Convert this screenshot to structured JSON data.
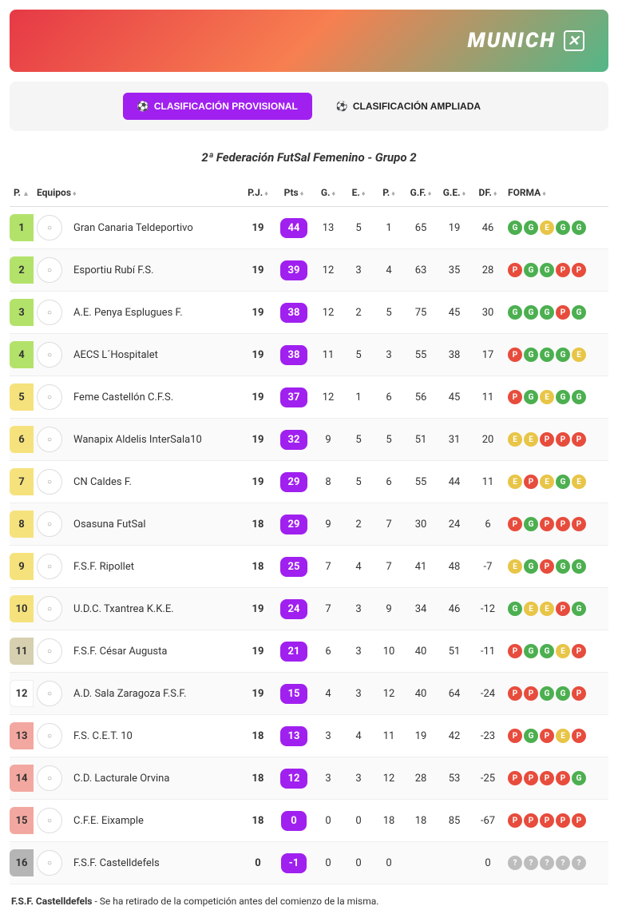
{
  "banner": {
    "brand": "MUNICH"
  },
  "tabs": {
    "active_label": "CLASIFICACIÓN PROVISIONAL",
    "inactive_label": "CLASIFICACIÓN AMPLIADA"
  },
  "title": "2ª Federación FutSal Femenino - Grupo 2",
  "columns": {
    "pos": "P.",
    "team": "Equipos",
    "pj": "P.J.",
    "pts": "Pts",
    "g": "G.",
    "e": "E.",
    "p": "P.",
    "gf": "G.F.",
    "ge": "G.E.",
    "df": "DF.",
    "forma": "FORMA"
  },
  "colors": {
    "rank_green": "#b3e26b",
    "rank_yellow": "#f6e27d",
    "rank_beige": "#d6d0b0",
    "rank_none": "#ffffff",
    "rank_red": "#f2a8a0",
    "rank_gray": "#b5b5b5",
    "form_G": "#4caf50",
    "form_E": "#e8c547",
    "form_P": "#e74c3c",
    "form_Q": "#bdbdbd",
    "pts_bg": "#a020f0"
  },
  "rows": [
    {
      "pos": 1,
      "rank_color": "rank_green",
      "team": "Gran Canaria Teldeportivo",
      "pj": 19,
      "pts": 44,
      "g": 13,
      "e": 5,
      "p": 1,
      "gf": 65,
      "ge": 19,
      "df": 46,
      "forma": [
        "G",
        "G",
        "E",
        "G",
        "G"
      ]
    },
    {
      "pos": 2,
      "rank_color": "rank_green",
      "team": "Esportiu Rubí F.S.",
      "pj": 19,
      "pts": 39,
      "g": 12,
      "e": 3,
      "p": 4,
      "gf": 63,
      "ge": 35,
      "df": 28,
      "forma": [
        "P",
        "G",
        "G",
        "P",
        "P"
      ]
    },
    {
      "pos": 3,
      "rank_color": "rank_green",
      "team": "A.E. Penya Esplugues F.",
      "pj": 19,
      "pts": 38,
      "g": 12,
      "e": 2,
      "p": 5,
      "gf": 75,
      "ge": 45,
      "df": 30,
      "forma": [
        "G",
        "G",
        "G",
        "P",
        "G"
      ]
    },
    {
      "pos": 4,
      "rank_color": "rank_green",
      "team": "AECS L´Hospitalet",
      "pj": 19,
      "pts": 38,
      "g": 11,
      "e": 5,
      "p": 3,
      "gf": 55,
      "ge": 38,
      "df": 17,
      "forma": [
        "P",
        "G",
        "G",
        "G",
        "E"
      ]
    },
    {
      "pos": 5,
      "rank_color": "rank_yellow",
      "team": "Feme Castellón C.F.S.",
      "pj": 19,
      "pts": 37,
      "g": 12,
      "e": 1,
      "p": 6,
      "gf": 56,
      "ge": 45,
      "df": 11,
      "forma": [
        "P",
        "G",
        "E",
        "G",
        "G"
      ]
    },
    {
      "pos": 6,
      "rank_color": "rank_yellow",
      "team": "Wanapix Aldelis InterSala10",
      "pj": 19,
      "pts": 32,
      "g": 9,
      "e": 5,
      "p": 5,
      "gf": 51,
      "ge": 31,
      "df": 20,
      "forma": [
        "E",
        "E",
        "P",
        "P",
        "P"
      ]
    },
    {
      "pos": 7,
      "rank_color": "rank_yellow",
      "team": "CN Caldes F.",
      "pj": 19,
      "pts": 29,
      "g": 8,
      "e": 5,
      "p": 6,
      "gf": 55,
      "ge": 44,
      "df": 11,
      "forma": [
        "E",
        "P",
        "E",
        "G",
        "E"
      ]
    },
    {
      "pos": 8,
      "rank_color": "rank_yellow",
      "team": "Osasuna FutSal",
      "pj": 18,
      "pts": 29,
      "g": 9,
      "e": 2,
      "p": 7,
      "gf": 30,
      "ge": 24,
      "df": 6,
      "forma": [
        "P",
        "G",
        "P",
        "P",
        "P"
      ]
    },
    {
      "pos": 9,
      "rank_color": "rank_yellow",
      "team": "F.S.F. Ripollet",
      "pj": 18,
      "pts": 25,
      "g": 7,
      "e": 4,
      "p": 7,
      "gf": 41,
      "ge": 48,
      "df": -7,
      "forma": [
        "E",
        "G",
        "P",
        "G",
        "G"
      ]
    },
    {
      "pos": 10,
      "rank_color": "rank_yellow",
      "team": "U.D.C. Txantrea K.K.E.",
      "pj": 19,
      "pts": 24,
      "g": 7,
      "e": 3,
      "p": 9,
      "gf": 34,
      "ge": 46,
      "df": -12,
      "forma": [
        "G",
        "E",
        "E",
        "P",
        "G"
      ]
    },
    {
      "pos": 11,
      "rank_color": "rank_beige",
      "team": "F.S.F. César Augusta",
      "pj": 19,
      "pts": 21,
      "g": 6,
      "e": 3,
      "p": 10,
      "gf": 40,
      "ge": 51,
      "df": -11,
      "forma": [
        "P",
        "G",
        "G",
        "E",
        "P"
      ]
    },
    {
      "pos": 12,
      "rank_color": "rank_none",
      "team": "A.D. Sala Zaragoza F.S.F.",
      "pj": 19,
      "pts": 15,
      "g": 4,
      "e": 3,
      "p": 12,
      "gf": 40,
      "ge": 64,
      "df": -24,
      "forma": [
        "P",
        "P",
        "G",
        "G",
        "P"
      ]
    },
    {
      "pos": 13,
      "rank_color": "rank_red",
      "team": "F.S. C.E.T. 10",
      "pj": 18,
      "pts": 13,
      "g": 3,
      "e": 4,
      "p": 11,
      "gf": 19,
      "ge": 42,
      "df": -23,
      "forma": [
        "P",
        "G",
        "P",
        "E",
        "P"
      ]
    },
    {
      "pos": 14,
      "rank_color": "rank_red",
      "team": "C.D. Lacturale Orvina",
      "pj": 18,
      "pts": 12,
      "g": 3,
      "e": 3,
      "p": 12,
      "gf": 28,
      "ge": 53,
      "df": -25,
      "forma": [
        "P",
        "P",
        "P",
        "P",
        "G"
      ]
    },
    {
      "pos": 15,
      "rank_color": "rank_red",
      "team": "C.F.E. Eixample",
      "pj": 18,
      "pts": 0,
      "g": 0,
      "e": 0,
      "p": 18,
      "gf": 18,
      "ge": 85,
      "df": -67,
      "forma": [
        "P",
        "P",
        "P",
        "P",
        "P"
      ]
    },
    {
      "pos": 16,
      "rank_color": "rank_gray",
      "team": "F.S.F. Castelldefels",
      "pj": 0,
      "pts": -1,
      "g": 0,
      "e": 0,
      "p": 0,
      "gf": "",
      "ge": "",
      "df": 0,
      "forma": [
        "?",
        "?",
        "?",
        "?",
        "?"
      ]
    }
  ],
  "footnote": {
    "bold": "F.S.F. Castelldefels",
    "text": " - Se ha retirado de la competición antes del comienzo de la misma."
  }
}
